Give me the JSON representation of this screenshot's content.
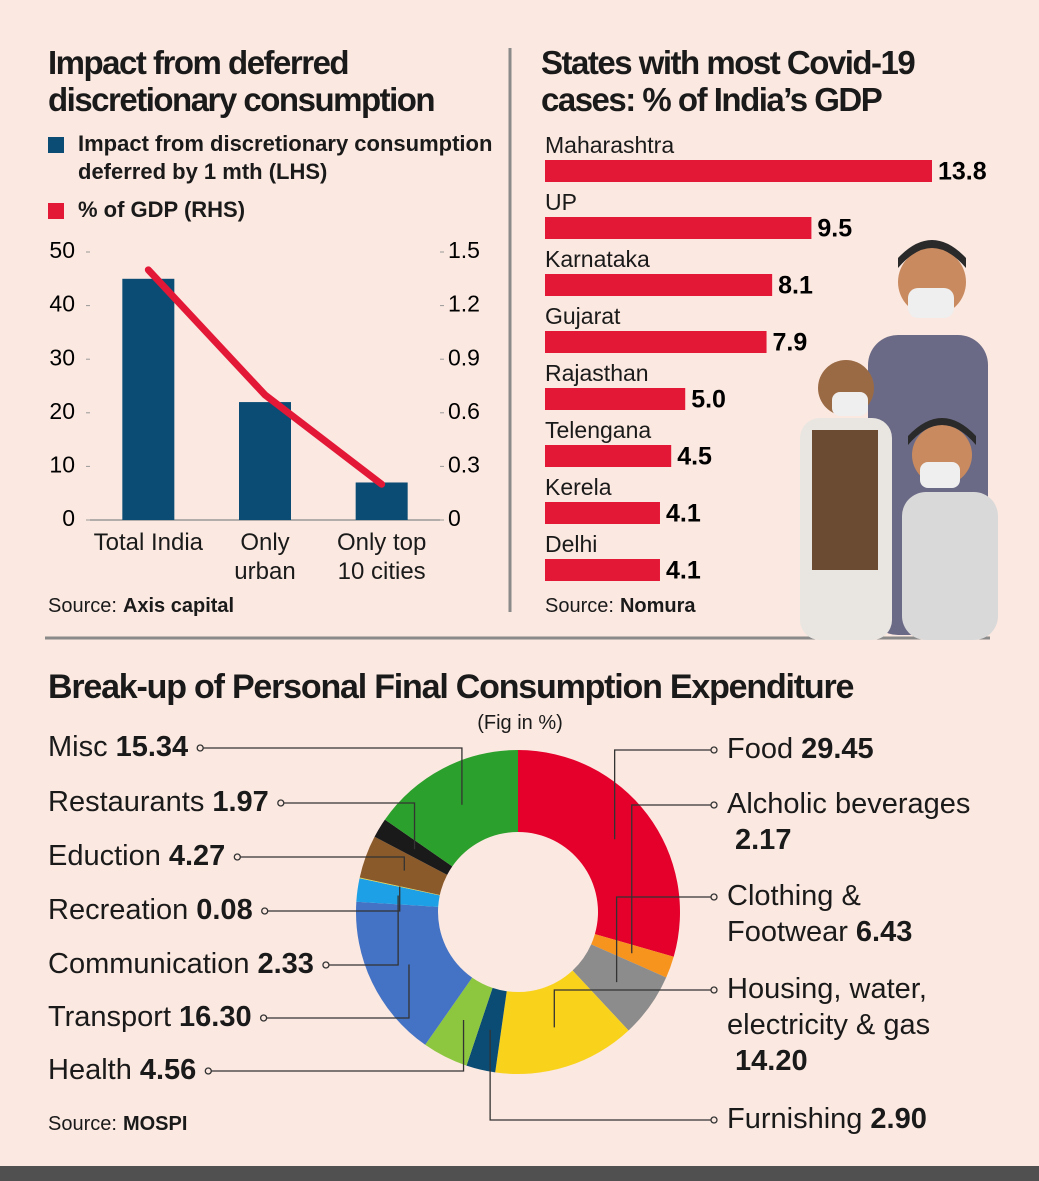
{
  "chart_data": [
    {
      "type": "combo",
      "title": "Impact from deferred discretionary consumption",
      "categories": [
        "Total India",
        "Only urban",
        "Only top 10 cities"
      ],
      "series": [
        {
          "name": "Impact from discretionary consumption deferred by 1 mth (LHS)",
          "type": "bar",
          "color": "#0b4c74",
          "values": [
            45,
            22,
            7
          ]
        },
        {
          "name": "% of GDP (RHS)",
          "type": "line",
          "axis": "y2",
          "color": "#e31837",
          "values": [
            1.4,
            0.7,
            0.2
          ]
        }
      ],
      "ylim": [
        0,
        50
      ],
      "yticks": [
        0,
        10,
        20,
        30,
        40,
        50
      ],
      "y2lim": [
        0,
        1.5
      ],
      "y2ticks": [
        0,
        0.3,
        0.6,
        0.9,
        1.2,
        1.5
      ],
      "source_label": "Source:",
      "source": "Axis capital"
    },
    {
      "type": "hbar",
      "title": "States with most Covid-19 cases: % of India’s GDP",
      "categories": [
        "Maharashtra",
        "UP",
        "Karnataka",
        "Gujarat",
        "Rajasthan",
        "Telengana",
        "Kerela",
        "Delhi"
      ],
      "values": [
        13.8,
        9.5,
        8.1,
        7.9,
        5.0,
        4.5,
        4.1,
        4.1
      ],
      "value_labels": [
        "13.8",
        "9.5",
        "8.1",
        "7.9",
        "5.0",
        "4.5",
        "4.1",
        "4.1"
      ],
      "color": "#e31837",
      "source_label": "Source:",
      "source": "Nomura"
    },
    {
      "type": "donut",
      "title": "Break-up of Personal Final Consumption Expenditure",
      "subtitle": "(Fig in %)",
      "categories": [
        "Food",
        "Alcholic beverages",
        "Clothing & Footwear",
        "Housing, water, electricity & gas",
        "Furnishing",
        "Health",
        "Transport",
        "Communication",
        "Recreation",
        "Eduction",
        "Restaurants",
        "Misc"
      ],
      "values": [
        29.45,
        2.17,
        6.43,
        14.2,
        2.9,
        4.56,
        16.3,
        2.33,
        0.08,
        4.27,
        1.97,
        15.34
      ],
      "value_labels": [
        "29.45",
        "2.17",
        "6.43",
        "14.20",
        "2.90",
        "4.56",
        "16.30",
        "2.33",
        "0.08",
        "4.27",
        "1.97",
        "15.34"
      ],
      "colors": [
        "#e4002b",
        "#f7941d",
        "#8c8c8c",
        "#f9d21c",
        "#0b4c74",
        "#8dc63f",
        "#4472c4",
        "#1ea0e6",
        "#e8e04a",
        "#8a5a2b",
        "#1a1a1a",
        "#2ca02c"
      ],
      "source_label": "Source:",
      "source": "MOSPI"
    }
  ]
}
